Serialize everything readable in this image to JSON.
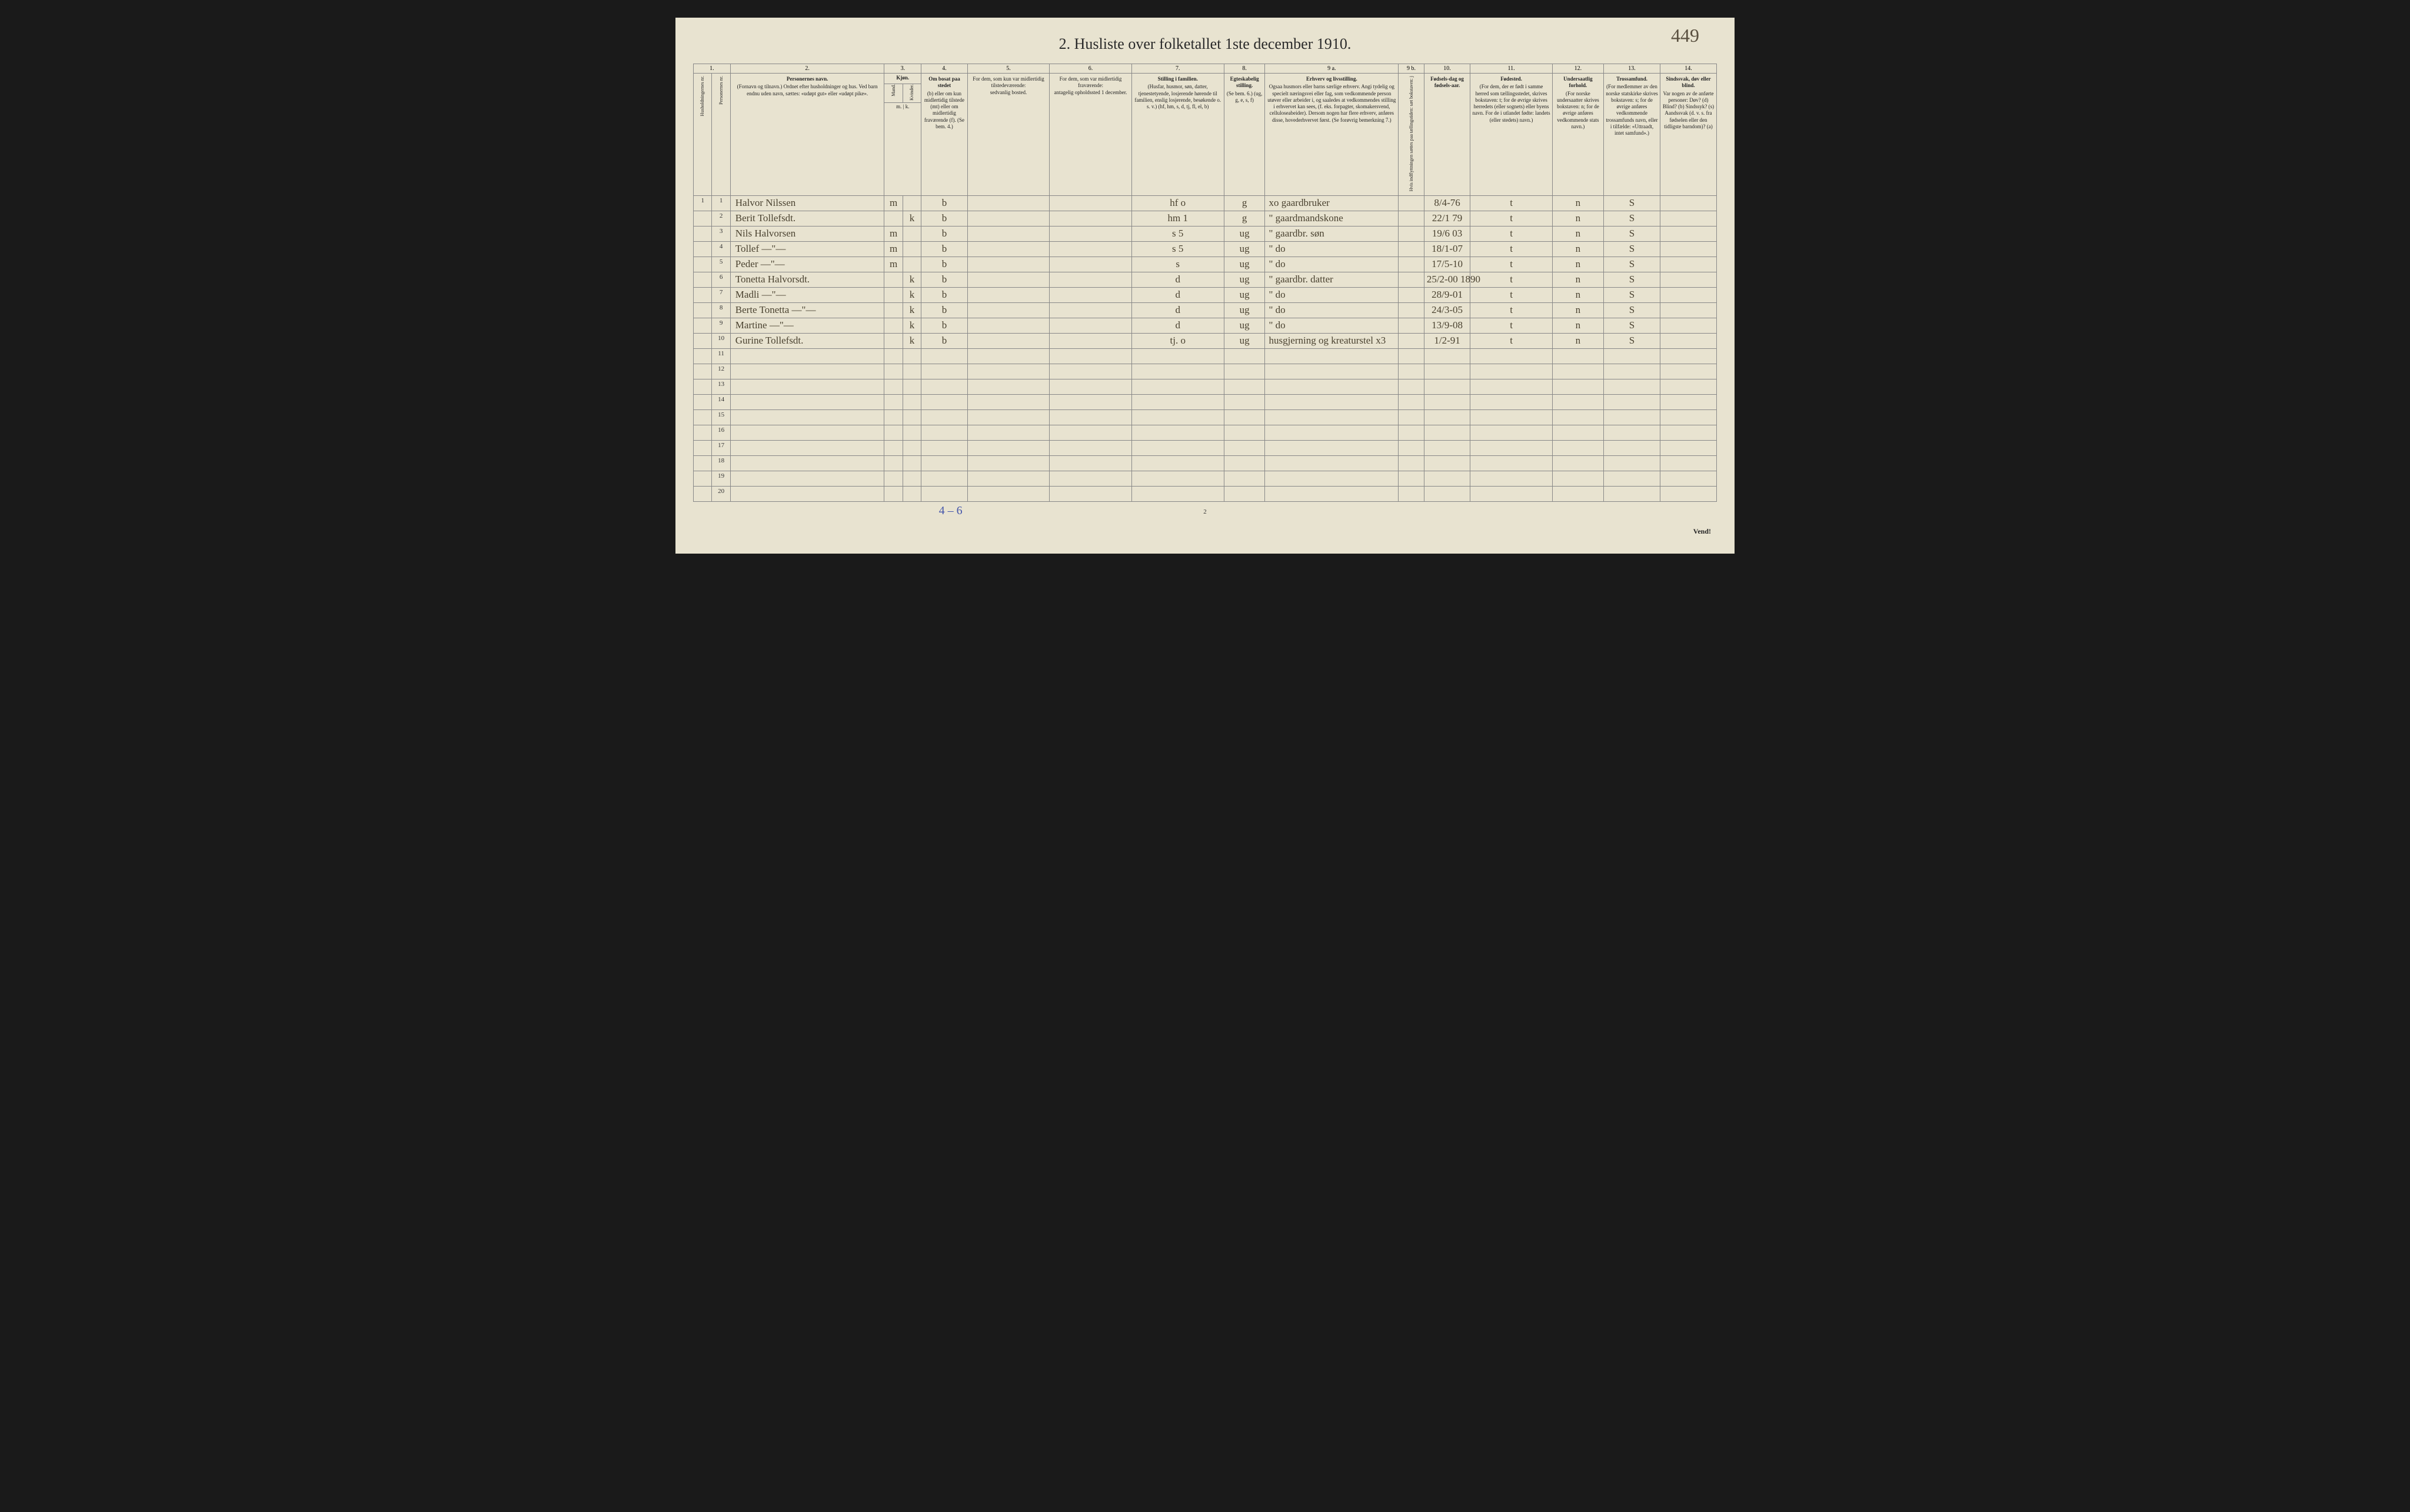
{
  "page_number_handwritten": "449",
  "title": "2.  Husliste over folketallet 1ste december 1910.",
  "footer_handwritten": "4 – 6",
  "page_bottom_number": "2",
  "vend_text": "Vend!",
  "colors": {
    "paper": "#e8e3d0",
    "ink_print": "#2a2a2a",
    "ink_handwriting": "#4a4230",
    "ink_blue": "#4455aa",
    "border": "#888888",
    "background": "#1a1a1a"
  },
  "typography": {
    "title_fontsize": 26,
    "header_fontsize": 9,
    "data_fontsize": 17,
    "data_font": "cursive"
  },
  "column_numbers": [
    "1.",
    "",
    "2.",
    "3.",
    "",
    "4.",
    "5.",
    "6.",
    "7.",
    "8.",
    "9 a.",
    "9 b.",
    "10.",
    "11.",
    "12.",
    "13.",
    "14."
  ],
  "headers": {
    "c1": "Husholdningernes nr.",
    "c1b": "Personernes nr.",
    "c2_main": "Personernes navn.",
    "c2_sub": "(Fornavn og tilnavn.)\nOrdnet efter husholdninger og hus.\nVed barn endnu uden navn, sættes: «udøpt gut» eller «udøpt pike».",
    "c3_main": "Kjøn.",
    "c3a": "Mand.",
    "c3b": "Kvinder.",
    "c3_sub": "m. | k.",
    "c4_main": "Om bosat paa stedet",
    "c4_sub": "(b) eller om kun midlertidig tilstede (mt) eller om midlertidig fraværende (f).\n(Se bem. 4.)",
    "c5_main": "For dem, som kun var midlertidig tilstedeværende:",
    "c5_sub": "sedvanlig bosted.",
    "c6_main": "For dem, som var midlertidig fraværende:",
    "c6_sub": "antagelig opholdssted 1 december.",
    "c7_main": "Stilling i familien.",
    "c7_sub": "(Husfar, husmor, søn, datter, tjenestetyende, losjerende hørende til familien, enslig losjerende, besøkende o. s. v.)\n(hf, hm, s, d, tj, fl, el, b)",
    "c8_main": "Egteskabelig stilling.",
    "c8_sub": "(Se bem. 6.)\n(ug, g, e, s, f)",
    "c9a_main": "Erhverv og livsstilling.",
    "c9a_sub": "Ogsaa husmors eller barns særlige erhverv. Angi tydelig og specielt næringsvei eller fag, som vedkommende person utøver eller arbeider i, og saaledes at vedkommendes stilling i erhvervet kan sees, (f. eks. forpagter, skomakersvend, celluloseabeider). Dersom nogen har flere erhverv, anføres disse, hovederhvervet først.\n(Se forøvrig bemerkning 7.)",
    "c9b": "Hvis indflyttningen sættes paa tællingstiden: sæt bokstaven: j",
    "c10_main": "Fødsels-dag og fødsels-aar.",
    "c11_main": "Fødested.",
    "c11_sub": "(For dem, der er født i samme herred som tællingsstedet, skrives bokstaven: t; for de øvrige skrives herredets (eller sognets) eller byens navn. For de i utlandet fødte: landets (eller stedets) navn.)",
    "c12_main": "Undersaatlig forhold.",
    "c12_sub": "(For norske undersaatter skrives bokstaven: n; for de øvrige anføres vedkommende stats navn.)",
    "c13_main": "Trossamfund.",
    "c13_sub": "(For medlemmer av den norske statskirke skrives bokstaven: s; for de øvrige anføres vedkommende trossamfunds navn, eller i tilfælde: «Uttraadt, intet samfund».)",
    "c14_main": "Sindssvak, døv eller blind.",
    "c14_sub": "Var nogen av de anførte personer:\nDøv? (d)\nBlind? (b)\nSindssyk? (s)\nAandssvak (d. v. s. fra fødselen eller den tidligste barndom)? (a)"
  },
  "rows": [
    {
      "hh": "1",
      "pn": "1",
      "name": "Halvor Nilssen",
      "m": "m",
      "k": "",
      "res": "b",
      "c5": "",
      "c6": "",
      "fam": "hf  o",
      "civ": "g",
      "occ": "xo  gaardbruker",
      "c9b": "",
      "dob": "8/4-76",
      "bp": "t",
      "nat": "n",
      "rel": "S",
      "c14": ""
    },
    {
      "hh": "",
      "pn": "2",
      "name": "Berit Tollefsdt.",
      "m": "",
      "k": "k",
      "res": "b",
      "c5": "",
      "c6": "",
      "fam": "hm  1",
      "civ": "g",
      "occ": "\"  gaardmandskone",
      "c9b": "",
      "dob": "22/1 79",
      "bp": "t",
      "nat": "n",
      "rel": "S",
      "c14": ""
    },
    {
      "hh": "",
      "pn": "3",
      "name": "Nils Halvorsen",
      "m": "m",
      "k": "",
      "res": "b",
      "c5": "",
      "c6": "",
      "fam": "s  5",
      "civ": "ug",
      "occ": "\"  gaardbr. søn",
      "c9b": "",
      "dob": "19/6 03",
      "bp": "t",
      "nat": "n",
      "rel": "S",
      "c14": ""
    },
    {
      "hh": "",
      "pn": "4",
      "name": "Tollef  —\"—",
      "m": "m",
      "k": "",
      "res": "b",
      "c5": "",
      "c6": "",
      "fam": "s  5",
      "civ": "ug",
      "occ": "\"     do",
      "c9b": "",
      "dob": "18/1-07",
      "bp": "t",
      "nat": "n",
      "rel": "S",
      "c14": ""
    },
    {
      "hh": "",
      "pn": "5",
      "name": "Peder  —\"—",
      "m": "m",
      "k": "",
      "res": "b",
      "c5": "",
      "c6": "",
      "fam": "s",
      "civ": "ug",
      "occ": "\"     do",
      "c9b": "",
      "dob": "17/5-10",
      "bp": "t",
      "nat": "n",
      "rel": "S",
      "c14": ""
    },
    {
      "hh": "",
      "pn": "6",
      "name": "Tonetta Halvorsdt.",
      "m": "",
      "k": "k",
      "res": "b",
      "c5": "",
      "c6": "",
      "fam": "d",
      "civ": "ug",
      "occ": "\"  gaardbr. datter",
      "c9b": "",
      "dob": "25/2-00  1890",
      "bp": "t",
      "nat": "n",
      "rel": "S",
      "c14": ""
    },
    {
      "hh": "",
      "pn": "7",
      "name": "Madli  —\"—",
      "m": "",
      "k": "k",
      "res": "b",
      "c5": "",
      "c6": "",
      "fam": "d",
      "civ": "ug",
      "occ": "\"     do",
      "c9b": "",
      "dob": "28/9-01",
      "bp": "t",
      "nat": "n",
      "rel": "S",
      "c14": ""
    },
    {
      "hh": "",
      "pn": "8",
      "name": "Berte Tonetta —\"—",
      "m": "",
      "k": "k",
      "res": "b",
      "c5": "",
      "c6": "",
      "fam": "d",
      "civ": "ug",
      "occ": "\"     do",
      "c9b": "",
      "dob": "24/3-05",
      "bp": "t",
      "nat": "n",
      "rel": "S",
      "c14": ""
    },
    {
      "hh": "",
      "pn": "9",
      "name": "Martine  —\"—",
      "m": "",
      "k": "k",
      "res": "b",
      "c5": "",
      "c6": "",
      "fam": "d",
      "civ": "ug",
      "occ": "\"     do",
      "c9b": "",
      "dob": "13/9-08",
      "bp": "t",
      "nat": "n",
      "rel": "S",
      "c14": ""
    },
    {
      "hh": "",
      "pn": "10",
      "name": "Gurine Tollefsdt.",
      "m": "",
      "k": "k",
      "res": "b",
      "c5": "",
      "c6": "",
      "fam": "tj. o",
      "civ": "ug",
      "occ": "husgjerning og kreaturstel  x3",
      "c9b": "",
      "dob": "1/2-91",
      "bp": "t",
      "nat": "n",
      "rel": "S",
      "c14": ""
    }
  ],
  "empty_row_numbers": [
    "11",
    "12",
    "13",
    "14",
    "15",
    "16",
    "17",
    "18",
    "19",
    "20"
  ]
}
